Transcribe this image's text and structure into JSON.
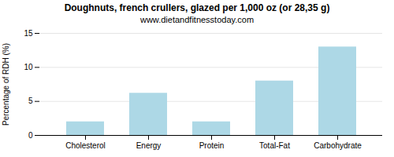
{
  "chart_data": {
    "type": "bar",
    "title": "Doughnuts, french crullers, glazed per 1,000 oz (or 28,35 g)",
    "subtitle": "www.dietandfitnesstoday.com",
    "categories": [
      "Cholesterol",
      "Energy",
      "Protein",
      "Total-Fat",
      "Carbohydrate"
    ],
    "values": [
      2.0,
      6.2,
      2.0,
      8.0,
      13.0
    ],
    "color": "#add8e6",
    "ylabel": "Percentage of RDH (%)",
    "ylim": [
      0,
      15
    ],
    "yticks": [
      0,
      5,
      10,
      15
    ],
    "grid": true
  }
}
